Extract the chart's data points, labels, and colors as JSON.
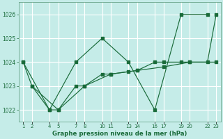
{
  "title": "Graphe pression niveau de la mer (hPa)",
  "bg_color": "#c5ece8",
  "grid_color": "#b0ddd8",
  "line_color": "#1a6b3a",
  "xlim": [
    0.5,
    23.5
  ],
  "ylim": [
    1021.5,
    1026.5
  ],
  "yticks": [
    1022,
    1023,
    1024,
    1025,
    1026
  ],
  "xtick_positions": [
    1,
    2,
    4,
    5,
    7,
    8,
    10,
    11,
    13,
    14,
    16,
    17,
    19,
    20,
    22,
    23
  ],
  "xtick_labels": [
    "1",
    "2",
    "4",
    "5",
    "7",
    "8",
    "10",
    "11",
    "13",
    "14",
    "16",
    "17",
    "19",
    "20",
    "22",
    "23"
  ],
  "line1_x": [
    1,
    4,
    7,
    10,
    13,
    16,
    19,
    22
  ],
  "line1_y": [
    1024.0,
    1022.0,
    1024.0,
    1025.0,
    1024.0,
    1022.0,
    1026.0,
    1026.0
  ],
  "line2_x": [
    2,
    5,
    8,
    11,
    14,
    17,
    20,
    23
  ],
  "line2_y": [
    1023.0,
    1022.0,
    1023.0,
    1023.5,
    1023.65,
    1023.8,
    1024.0,
    1024.0
  ],
  "line3_x": [
    1,
    2,
    4,
    5,
    7,
    8,
    10,
    11,
    13,
    14,
    16,
    17,
    19,
    20,
    22,
    23
  ],
  "line3_y": [
    1024.0,
    1023.0,
    1022.0,
    1022.0,
    1023.0,
    1023.0,
    1023.5,
    1023.5,
    1023.6,
    1023.65,
    1024.0,
    1024.0,
    1024.0,
    1024.0,
    1024.0,
    1026.0
  ]
}
